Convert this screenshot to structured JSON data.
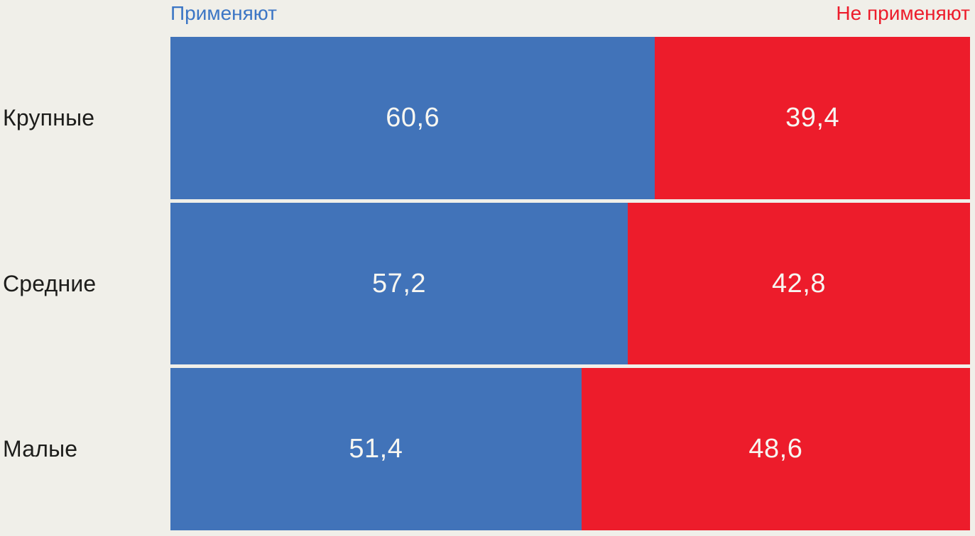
{
  "chart_data": {
    "type": "bar",
    "variant": "horizontal-stacked-100-percent",
    "categories": [
      "Крупные",
      "Средние",
      "Малые"
    ],
    "series": [
      {
        "name": "Применяют",
        "color": "#4173B9",
        "values": [
          60.6,
          57.2,
          51.4
        ]
      },
      {
        "name": "Не применяют",
        "color": "#ED1C2B",
        "values": [
          39.4,
          42.8,
          48.6
        ]
      }
    ],
    "value_labels": [
      [
        "60,6",
        "39,4"
      ],
      [
        "57,2",
        "42,8"
      ],
      [
        "51,4",
        "48,6"
      ]
    ],
    "xlim": [
      0,
      100
    ],
    "legend_position": "top",
    "grid": false,
    "colors": {
      "background": "#F0EFE9",
      "category_text": "#1D1D1B",
      "value_text": "#F7F6F1",
      "legend_apply_text": "#3C76C5",
      "legend_not_apply_text": "#ED1C2B",
      "row_gap": "#F0EFE9"
    }
  }
}
